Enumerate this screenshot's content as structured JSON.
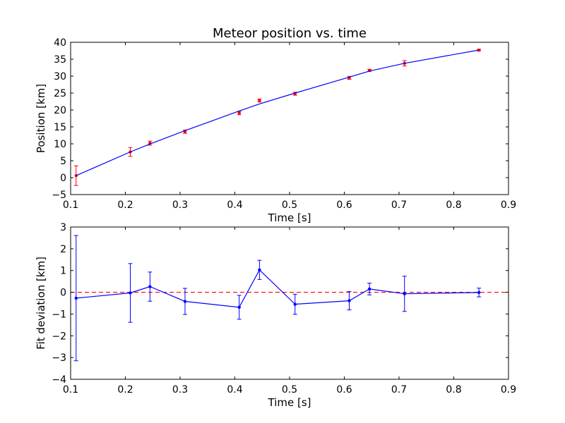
{
  "chart_data": [
    {
      "type": "scatter",
      "title": "Meteor position vs. time",
      "xlabel": "Time [s]",
      "ylabel": "Position [km]",
      "xlim": [
        0.1,
        0.9
      ],
      "ylim": [
        -5,
        40
      ],
      "xticks": [
        "0.1",
        "0.2",
        "0.3",
        "0.4",
        "0.5",
        "0.6",
        "0.7",
        "0.8",
        "0.9"
      ],
      "yticks": [
        "-5",
        "0",
        "5",
        "10",
        "15",
        "20",
        "25",
        "30",
        "35",
        "40"
      ],
      "grid": false,
      "series": [
        {
          "kind": "points_with_errorbars",
          "color": "#ff0000",
          "points": [
            {
              "x": 0.11,
              "y": 0.6,
              "err": 2.9
            },
            {
              "x": 0.209,
              "y": 7.6,
              "err": 1.3
            },
            {
              "x": 0.245,
              "y": 10.2,
              "err": 0.6
            },
            {
              "x": 0.309,
              "y": 13.6,
              "err": 0.5
            },
            {
              "x": 0.408,
              "y": 19.1,
              "err": 0.5
            },
            {
              "x": 0.445,
              "y": 22.8,
              "err": 0.45
            },
            {
              "x": 0.51,
              "y": 24.8,
              "err": 0.45
            },
            {
              "x": 0.609,
              "y": 29.5,
              "err": 0.45
            },
            {
              "x": 0.646,
              "y": 31.7,
              "err": 0.3
            },
            {
              "x": 0.71,
              "y": 33.8,
              "err": 0.8
            },
            {
              "x": 0.846,
              "y": 37.7,
              "err": 0.25
            }
          ]
        },
        {
          "kind": "fit_line",
          "color": "#0000ff",
          "points": [
            {
              "x": 0.11,
              "y": 0.6
            },
            {
              "x": 0.209,
              "y": 7.6
            },
            {
              "x": 0.245,
              "y": 9.95
            },
            {
              "x": 0.309,
              "y": 13.9
            },
            {
              "x": 0.408,
              "y": 19.7
            },
            {
              "x": 0.445,
              "y": 21.8
            },
            {
              "x": 0.51,
              "y": 25.0
            },
            {
              "x": 0.609,
              "y": 29.7
            },
            {
              "x": 0.646,
              "y": 31.5
            },
            {
              "x": 0.71,
              "y": 33.8
            },
            {
              "x": 0.846,
              "y": 37.7
            }
          ]
        }
      ]
    },
    {
      "type": "line",
      "title": "",
      "xlabel": "Time [s]",
      "ylabel": "Fit deviation [km]",
      "xlim": [
        0.1,
        0.9
      ],
      "ylim": [
        -4,
        3
      ],
      "xticks": [
        "0.1",
        "0.2",
        "0.3",
        "0.4",
        "0.5",
        "0.6",
        "0.7",
        "0.8",
        "0.9"
      ],
      "yticks": [
        "-4",
        "-3",
        "-2",
        "-1",
        "0",
        "1",
        "2",
        "3"
      ],
      "grid": false,
      "reference_line": {
        "y": 0,
        "color": "#ff0000",
        "style": "dashed"
      },
      "series": [
        {
          "kind": "line_with_errorbars",
          "color": "#0000ff",
          "points": [
            {
              "x": 0.11,
              "y": -0.27,
              "err": 2.88
            },
            {
              "x": 0.209,
              "y": -0.03,
              "err": 1.35
            },
            {
              "x": 0.245,
              "y": 0.26,
              "err": 0.67
            },
            {
              "x": 0.309,
              "y": -0.42,
              "err": 0.6
            },
            {
              "x": 0.408,
              "y": -0.69,
              "err": 0.55
            },
            {
              "x": 0.445,
              "y": 1.03,
              "err": 0.44
            },
            {
              "x": 0.51,
              "y": -0.55,
              "err": 0.46
            },
            {
              "x": 0.609,
              "y": -0.39,
              "err": 0.42
            },
            {
              "x": 0.646,
              "y": 0.15,
              "err": 0.27
            },
            {
              "x": 0.71,
              "y": -0.07,
              "err": 0.81
            },
            {
              "x": 0.846,
              "y": -0.01,
              "err": 0.2
            }
          ]
        }
      ]
    }
  ]
}
